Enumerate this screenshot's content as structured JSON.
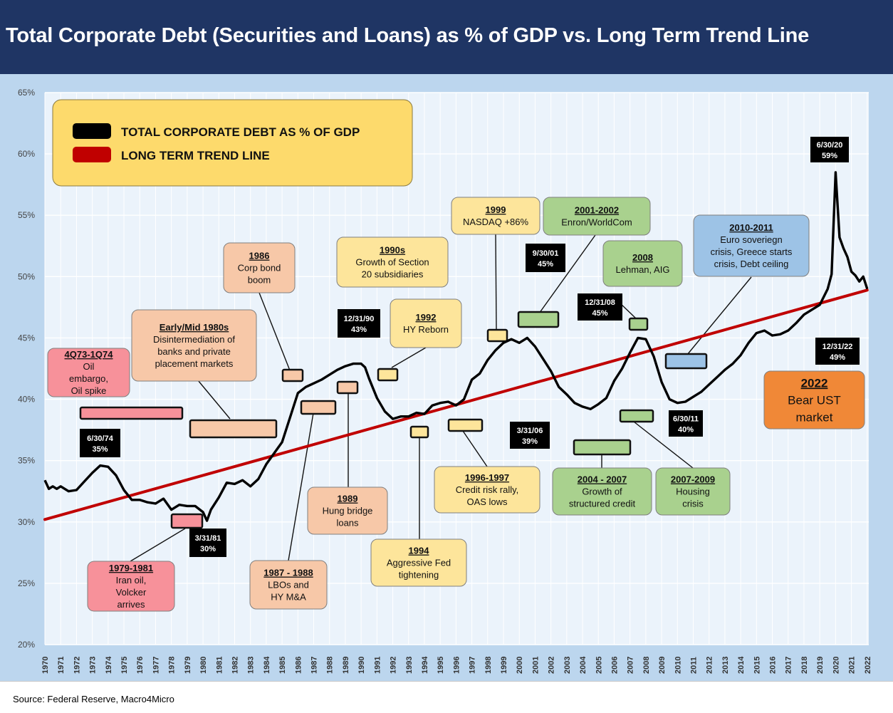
{
  "header": {
    "title": "Total Corporate Debt (Securities and Loans) as % of GDP vs. Long Term Trend Line"
  },
  "footer": {
    "source": "Source: Federal Reserve, Macro4Micro"
  },
  "legend": {
    "placement": "top-left",
    "items": [
      {
        "label": "TOTAL CORPORATE DEBT AS % OF GDP",
        "color": "#000000"
      },
      {
        "label": "LONG TERM TREND LINE",
        "color": "#c00000"
      }
    ]
  },
  "chart_data": {
    "type": "line",
    "title": "Total Corporate Debt (Securities and Loans) as % of GDP vs. Long Term Trend Line",
    "xlabel": "",
    "ylabel": "",
    "xlim": [
      1970,
      2022.1
    ],
    "ylim": [
      20,
      65
    ],
    "yticks": [
      20,
      25,
      30,
      35,
      40,
      45,
      50,
      55,
      60,
      65
    ],
    "ytick_labels": [
      "20%",
      "25%",
      "30%",
      "35%",
      "40%",
      "45%",
      "50%",
      "55%",
      "60%",
      "65%"
    ],
    "xtick_labels": [
      "1970",
      "1971",
      "1972",
      "1973",
      "1974",
      "1975",
      "1976",
      "1977",
      "1978",
      "1979",
      "1980",
      "1981",
      "1982",
      "1983",
      "1984",
      "1985",
      "1986",
      "1987",
      "1988",
      "1989",
      "1990",
      "1991",
      "1992",
      "1993",
      "1994",
      "1995",
      "1996",
      "1997",
      "1998",
      "1999",
      "2000",
      "2001",
      "2002",
      "2003",
      "2004",
      "2005",
      "2006",
      "2007",
      "2008",
      "2009",
      "2010",
      "2011",
      "2012",
      "2013",
      "2014",
      "2015",
      "2016",
      "2017",
      "2018",
      "2019",
      "2020",
      "2021",
      "2022"
    ],
    "grid": true,
    "colors": {
      "debt": "#000000",
      "trend": "#c00000"
    },
    "series": [
      {
        "name": "TOTAL CORPORATE DEBT AS % OF GDP",
        "x": [
          1970,
          1970.25,
          1970.5,
          1970.75,
          1971,
          1971.5,
          1972,
          1972.5,
          1973,
          1973.5,
          1974,
          1974.5,
          1975,
          1975.5,
          1976,
          1976.5,
          1977,
          1977.5,
          1978,
          1978.5,
          1979,
          1979.5,
          1980,
          1980.25,
          1980.5,
          1981,
          1981.5,
          1982,
          1982.5,
          1983,
          1983.5,
          1984,
          1984.5,
          1985,
          1985.5,
          1986,
          1986.5,
          1987,
          1987.5,
          1988,
          1988.5,
          1989,
          1989.5,
          1990,
          1990.25,
          1990.5,
          1991,
          1991.5,
          1992,
          1992.5,
          1993,
          1993.5,
          1994,
          1994.5,
          1995,
          1995.5,
          1996,
          1996.5,
          1997,
          1997.5,
          1998,
          1998.5,
          1999,
          1999.5,
          2000,
          2000.5,
          2001,
          2001.5,
          2002,
          2002.5,
          2003,
          2003.5,
          2004,
          2004.5,
          2005,
          2005.5,
          2006,
          2006.5,
          2007,
          2007.5,
          2008,
          2008.5,
          2009,
          2009.5,
          2010,
          2010.5,
          2011,
          2011.5,
          2012,
          2012.5,
          2013,
          2013.5,
          2014,
          2014.5,
          2015,
          2015.5,
          2016,
          2016.5,
          2017,
          2017.5,
          2018,
          2018.5,
          2019,
          2019.5,
          2019.75,
          2020,
          2020.25,
          2020.5,
          2020.75,
          2021,
          2021.25,
          2021.5,
          2021.75,
          2022
        ],
        "values": [
          33.4,
          32.7,
          32.9,
          32.7,
          32.9,
          32.5,
          32.6,
          33.3,
          34.0,
          34.6,
          34.5,
          33.8,
          32.6,
          31.8,
          31.8,
          31.6,
          31.5,
          31.9,
          31.0,
          31.4,
          31.3,
          31.3,
          30.8,
          30.1,
          31.0,
          32.0,
          33.2,
          33.1,
          33.4,
          32.9,
          33.5,
          34.7,
          35.6,
          36.5,
          38.5,
          40.5,
          41.0,
          41.3,
          41.6,
          42.0,
          42.4,
          42.7,
          42.9,
          42.9,
          42.6,
          41.7,
          40.1,
          39.0,
          38.4,
          38.6,
          38.6,
          38.9,
          38.8,
          39.5,
          39.7,
          39.8,
          39.5,
          40.0,
          41.6,
          42.1,
          43.2,
          44.0,
          44.6,
          44.9,
          44.6,
          45.0,
          44.3,
          43.3,
          42.3,
          41.0,
          40.4,
          39.7,
          39.4,
          39.2,
          39.6,
          40.1,
          41.5,
          42.5,
          43.8,
          45.0,
          44.9,
          43.5,
          41.4,
          40.0,
          39.7,
          39.8,
          40.2,
          40.6,
          41.2,
          41.8,
          42.4,
          42.9,
          43.6,
          44.6,
          45.4,
          45.6,
          45.2,
          45.3,
          45.6,
          46.2,
          46.9,
          47.3,
          47.7,
          49.0,
          50.2,
          58.5,
          53.2,
          52.3,
          51.6,
          50.4,
          50.1,
          49.6,
          50.0,
          49.0
        ]
      },
      {
        "name": "LONG TERM TREND LINE",
        "x": [
          1970,
          2022
        ],
        "values": [
          30.2,
          48.9
        ]
      }
    ],
    "annotations": [
      {
        "head": "4Q73-1Q74",
        "lines": [
          "Oil",
          "embargo,",
          "Oil spike"
        ],
        "color": "#f7919a"
      },
      {
        "head": "Early/Mid 1980s",
        "lines": [
          "Disintermediation of",
          "banks and private",
          "placement markets"
        ],
        "color": "#f7c8a8"
      },
      {
        "head": "1986",
        "lines": [
          "Corp bond",
          "boom"
        ],
        "color": "#f7c8a8"
      },
      {
        "head": "1990s",
        "lines": [
          "Growth of Section",
          "20 subsidiaries"
        ],
        "color": "#fde59b"
      },
      {
        "head": "1992",
        "lines": [
          "HY Reborn"
        ],
        "color": "#fde59b"
      },
      {
        "head": "1999",
        "lines": [
          "NASDAQ +86%"
        ],
        "color": "#fde59b"
      },
      {
        "head": "2001-2002",
        "lines": [
          "Enron/WorldCom"
        ],
        "color": "#a9d18e"
      },
      {
        "head": "2008",
        "lines": [
          "Lehman, AIG"
        ],
        "color": "#a9d18e"
      },
      {
        "head": "2010-2011",
        "lines": [
          "Euro soveriegn",
          "crisis, Greece starts",
          "crisis, Debt ceiling"
        ],
        "color": "#9dc3e6"
      },
      {
        "head": "2022",
        "lines": [
          "Bear UST",
          "market"
        ],
        "color": "#f08837"
      },
      {
        "head": "1979-1981",
        "lines": [
          "Iran oil,",
          "Volcker",
          "arrives"
        ],
        "color": "#f7919a"
      },
      {
        "head": "1987 - 1988",
        "lines": [
          "LBOs and",
          "HY M&A"
        ],
        "color": "#f7c8a8"
      },
      {
        "head": "1989",
        "lines": [
          "Hung bridge",
          "loans"
        ],
        "color": "#f7c8a8"
      },
      {
        "head": "1994",
        "lines": [
          "Aggressive Fed",
          "tightening"
        ],
        "color": "#fde59b"
      },
      {
        "head": "1996-1997",
        "lines": [
          "Credit risk rally,",
          "OAS lows"
        ],
        "color": "#fde59b"
      },
      {
        "head": "2004 - 2007",
        "lines": [
          "Growth of",
          "structured credit"
        ],
        "color": "#a9d18e"
      },
      {
        "head": "2007-2009",
        "lines": [
          "Housing",
          "crisis"
        ],
        "color": "#a9d18e"
      }
    ],
    "data_labels": [
      {
        "date": "6/30/74",
        "value": "35%"
      },
      {
        "date": "3/31/81",
        "value": "30%"
      },
      {
        "date": "12/31/90",
        "value": "43%"
      },
      {
        "date": "9/30/01",
        "value": "45%"
      },
      {
        "date": "3/31/06",
        "value": "39%"
      },
      {
        "date": "12/31/08",
        "value": "45%"
      },
      {
        "date": "6/30/11",
        "value": "40%"
      },
      {
        "date": "6/30/20",
        "value": "59%"
      },
      {
        "date": "12/31/22",
        "value": "49%"
      }
    ]
  }
}
